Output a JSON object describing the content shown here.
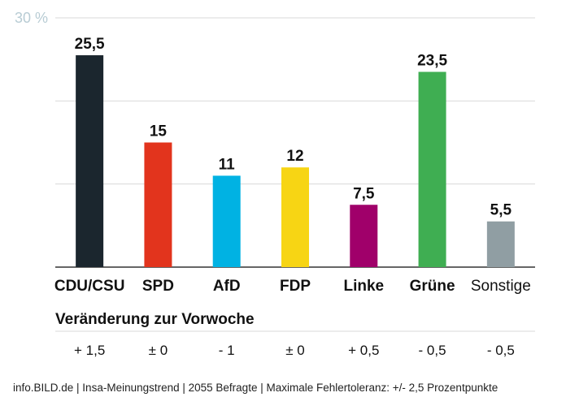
{
  "chart_data": {
    "type": "bar",
    "categories": [
      "CDU/CSU",
      "SPD",
      "AfD",
      "FDP",
      "Linke",
      "Grüne",
      "Sonstige"
    ],
    "values": [
      25.5,
      15,
      11,
      12,
      7.5,
      23.5,
      5.5
    ],
    "value_labels": [
      "25,5",
      "15",
      "11",
      "12",
      "7,5",
      "23,5",
      "5,5"
    ],
    "colors": [
      "#1b262e",
      "#e2341d",
      "#00b2e3",
      "#f7d514",
      "#a0006a",
      "#3fae52",
      "#909ea3"
    ],
    "category_bold": [
      true,
      true,
      true,
      true,
      true,
      true,
      false
    ],
    "ylim": [
      0,
      30
    ],
    "top_tick_label": "30 %",
    "grid": true,
    "title": "",
    "xlabel": "",
    "ylabel": ""
  },
  "change": {
    "heading": "Veränderung zur Vorwoche",
    "values": [
      "+ 1,5",
      "± 0",
      "- 1",
      "± 0",
      "+ 0,5",
      "- 0,5",
      "- 0,5"
    ]
  },
  "footer": {
    "source": "info.BILD.de | Insa-Meinungstrend | 2055 Befragte | Maximale Fehlertoleranz: +/- 2,5 Prozentpunkte"
  }
}
